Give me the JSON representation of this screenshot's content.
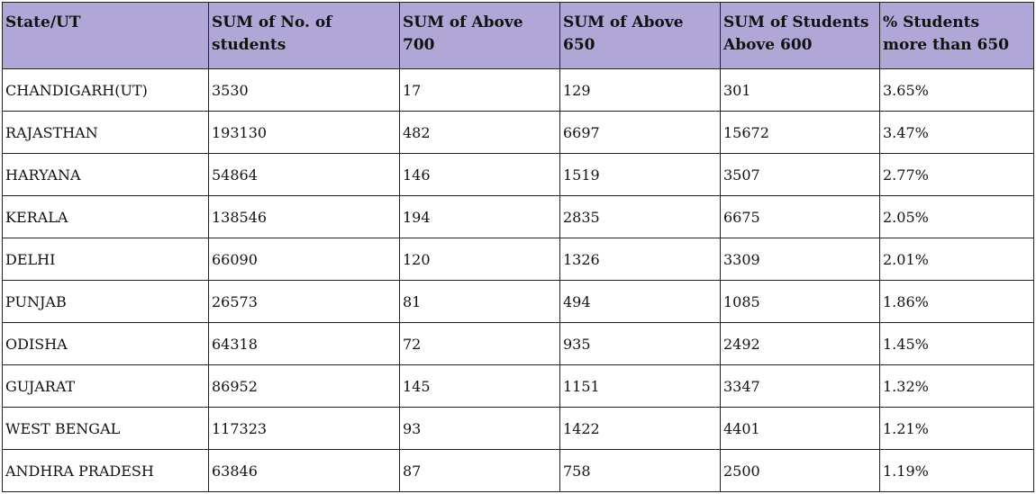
{
  "table": {
    "headers": [
      "State/UT",
      "SUM of No. of\nstudents",
      "SUM of Above 700",
      "SUM of Above 650",
      "SUM of Students\n Above 600",
      "% Students\nmore than 650"
    ],
    "rows": [
      [
        "CHANDIGARH(UT)",
        "3530",
        "17",
        "129",
        "301",
        "3.65%"
      ],
      [
        "RAJASTHAN",
        "193130",
        "482",
        "6697",
        "15672",
        "3.47%"
      ],
      [
        "HARYANA",
        "54864",
        "146",
        "1519",
        "3507",
        "2.77%"
      ],
      [
        "KERALA",
        "138546",
        "194",
        "2835",
        "6675",
        "2.05%"
      ],
      [
        "DELHI",
        "66090",
        "120",
        "1326",
        "3309",
        "2.01%"
      ],
      [
        "PUNJAB",
        "26573",
        "81",
        "494",
        "1085",
        "1.86%"
      ],
      [
        "ODISHA",
        "64318",
        "72",
        "935",
        "2492",
        "1.45%"
      ],
      [
        "GUJARAT",
        "86952",
        "145",
        "1151",
        "3347",
        "1.32%"
      ],
      [
        "WEST BENGAL",
        "117323",
        "93",
        "1422",
        "4401",
        "1.21%"
      ],
      [
        "ANDHRA PRADESH",
        "63846",
        "87",
        "758",
        "2500",
        "1.19%"
      ]
    ]
  },
  "colors": {
    "header_background": "#b1a7d6",
    "border": "#222222",
    "text": "#111111"
  }
}
